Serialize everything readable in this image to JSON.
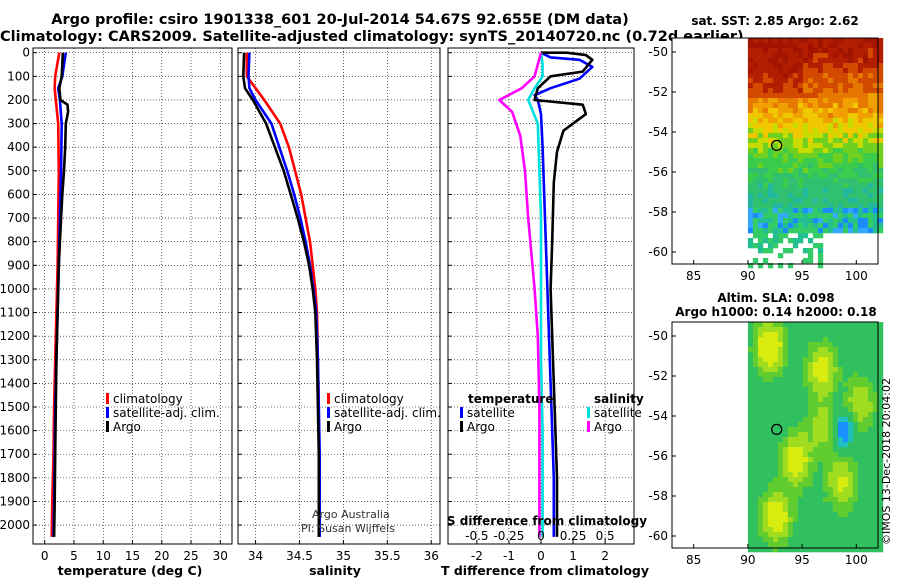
{
  "header": {
    "line1": "Argo profile: csiro 1901338_601 20-Jul-2014 54.67S 92.655E (DM data)",
    "line2": "Climatology: CARS2009. Satellite-adjusted climatology: synTS_20140720.nc (0.72d earlier)"
  },
  "colors": {
    "climatology": "#ff0000",
    "satellite": "#0000ff",
    "argo": "#000000",
    "sat_s": "#00e0e0",
    "argo_s": "#ff00ff"
  },
  "chart_data": [
    {
      "id": "temperature",
      "type": "line",
      "xlabel": "temperature (deg C)",
      "xlim": [
        -2,
        32
      ],
      "xticks": [
        0,
        5,
        10,
        15,
        20,
        25,
        30
      ],
      "ylim": [
        2080,
        -20
      ],
      "yticks": [
        0,
        100,
        200,
        300,
        400,
        500,
        600,
        700,
        800,
        900,
        1000,
        1100,
        1200,
        1300,
        1400,
        1500,
        1600,
        1700,
        1800,
        1900,
        2000
      ],
      "legend": {
        "position": "lower-right",
        "labels": [
          "climatology",
          "satellite-adj. clim.",
          "Argo"
        ]
      },
      "series": [
        {
          "name": "climatology",
          "color": "#ff0000",
          "points": [
            [
              2.5,
              0
            ],
            [
              1.8,
              100
            ],
            [
              1.7,
              150
            ],
            [
              1.9,
              200
            ],
            [
              2.3,
              300
            ],
            [
              2.4,
              500
            ],
            [
              2.3,
              700
            ],
            [
              2.2,
              900
            ],
            [
              2.0,
              1100
            ],
            [
              1.8,
              1300
            ],
            [
              1.6,
              1500
            ],
            [
              1.5,
              1700
            ],
            [
              1.3,
              1900
            ],
            [
              1.2,
              2050
            ]
          ]
        },
        {
          "name": "satellite-adj. clim.",
          "color": "#0000ff",
          "points": [
            [
              3.6,
              0
            ],
            [
              3.3,
              50
            ],
            [
              3.0,
              100
            ],
            [
              2.3,
              150
            ],
            [
              2.6,
              200
            ],
            [
              2.9,
              300
            ],
            [
              2.8,
              500
            ],
            [
              2.6,
              700
            ],
            [
              2.4,
              900
            ],
            [
              2.2,
              1100
            ],
            [
              2.0,
              1300
            ],
            [
              1.8,
              1500
            ],
            [
              1.7,
              1700
            ],
            [
              1.6,
              1900
            ],
            [
              1.5,
              2050
            ]
          ]
        },
        {
          "name": "Argo",
          "color": "#000000",
          "points": [
            [
              3.1,
              0
            ],
            [
              3.0,
              50
            ],
            [
              2.9,
              100
            ],
            [
              2.5,
              150
            ],
            [
              2.7,
              200
            ],
            [
              3.9,
              220
            ],
            [
              4.0,
              250
            ],
            [
              3.6,
              300
            ],
            [
              3.5,
              400
            ],
            [
              3.3,
              500
            ],
            [
              3.0,
              600
            ],
            [
              2.8,
              700
            ],
            [
              2.6,
              800
            ],
            [
              2.4,
              900
            ],
            [
              2.3,
              1000
            ],
            [
              2.2,
              1100
            ],
            [
              2.0,
              1300
            ],
            [
              1.9,
              1500
            ],
            [
              1.8,
              1700
            ],
            [
              1.7,
              1900
            ],
            [
              1.6,
              2050
            ]
          ]
        }
      ]
    },
    {
      "id": "salinity",
      "type": "line",
      "xlabel": "salinity",
      "xlim": [
        33.8,
        36.1
      ],
      "xticks": [
        34,
        34.5,
        35,
        35.5,
        36
      ],
      "xticklabels": [
        "34",
        "34.5",
        "35",
        "35.5",
        "36"
      ],
      "ylim": [
        2080,
        -20
      ],
      "legend": {
        "position": "lower-right",
        "labels": [
          "climatology",
          "satellite-adj. clim.",
          "Argo"
        ]
      },
      "annotation": [
        "Argo Australia",
        "PI: Susan Wijffels"
      ],
      "series": [
        {
          "name": "climatology",
          "color": "#ff0000",
          "points": [
            [
              33.9,
              0
            ],
            [
              33.9,
              100
            ],
            [
              34.0,
              150
            ],
            [
              34.1,
              200
            ],
            [
              34.28,
              300
            ],
            [
              34.38,
              400
            ],
            [
              34.45,
              500
            ],
            [
              34.52,
              600
            ],
            [
              34.57,
              700
            ],
            [
              34.62,
              800
            ],
            [
              34.65,
              900
            ],
            [
              34.68,
              1000
            ],
            [
              34.7,
              1100
            ],
            [
              34.71,
              1300
            ],
            [
              34.72,
              1500
            ],
            [
              34.72,
              1700
            ],
            [
              34.72,
              1900
            ],
            [
              34.72,
              2050
            ]
          ]
        },
        {
          "name": "satellite-adj. clim.",
          "color": "#0000ff",
          "points": [
            [
              33.93,
              0
            ],
            [
              33.92,
              100
            ],
            [
              33.93,
              150
            ],
            [
              34.0,
              200
            ],
            [
              34.18,
              300
            ],
            [
              34.27,
              400
            ],
            [
              34.36,
              500
            ],
            [
              34.44,
              600
            ],
            [
              34.51,
              700
            ],
            [
              34.57,
              800
            ],
            [
              34.62,
              900
            ],
            [
              34.66,
              1000
            ],
            [
              34.69,
              1100
            ],
            [
              34.71,
              1300
            ],
            [
              34.72,
              1500
            ],
            [
              34.73,
              1700
            ],
            [
              34.73,
              1900
            ],
            [
              34.73,
              2050
            ]
          ]
        },
        {
          "name": "Argo",
          "color": "#000000",
          "points": [
            [
              33.87,
              0
            ],
            [
              33.86,
              100
            ],
            [
              33.88,
              150
            ],
            [
              33.97,
              200
            ],
            [
              34.12,
              300
            ],
            [
              34.22,
              400
            ],
            [
              34.32,
              500
            ],
            [
              34.4,
              600
            ],
            [
              34.48,
              700
            ],
            [
              34.55,
              800
            ],
            [
              34.61,
              900
            ],
            [
              34.65,
              1000
            ],
            [
              34.68,
              1100
            ],
            [
              34.7,
              1300
            ],
            [
              34.71,
              1500
            ],
            [
              34.72,
              1700
            ],
            [
              34.72,
              1900
            ],
            [
              34.72,
              2050
            ]
          ]
        }
      ]
    },
    {
      "id": "difference",
      "type": "line",
      "xlabel": "T difference from climatology",
      "xlim": [
        -2.9,
        2.9
      ],
      "xticks": [
        -2,
        -1,
        0,
        1,
        2
      ],
      "s_axis": {
        "label": "S difference from climatology",
        "ticks": [
          "-0.5",
          "-0.25",
          "0",
          "0.25",
          "0.5"
        ],
        "positions": [
          -2,
          -1,
          0,
          1,
          2
        ]
      },
      "ylim": [
        2080,
        -20
      ],
      "legend": {
        "position": "lower-center",
        "left_title": "temperature",
        "right_title": "salinity",
        "labels": [
          "satellite",
          "Argo",
          "satellite",
          "Argo"
        ]
      },
      "series": [
        {
          "name": "temperature satellite",
          "color": "#0000ff",
          "points": [
            [
              0.0,
              0
            ],
            [
              0.3,
              20
            ],
            [
              1.2,
              30
            ],
            [
              1.6,
              60
            ],
            [
              1.2,
              110
            ],
            [
              0.3,
              150
            ],
            [
              -0.2,
              180
            ],
            [
              -0.1,
              200
            ],
            [
              0.0,
              260
            ],
            [
              0.05,
              400
            ],
            [
              0.1,
              600
            ],
            [
              0.15,
              800
            ],
            [
              0.2,
              1000
            ],
            [
              0.25,
              1200
            ],
            [
              0.3,
              1400
            ],
            [
              0.35,
              1600
            ],
            [
              0.4,
              1800
            ],
            [
              0.4,
              2050
            ]
          ]
        },
        {
          "name": "temperature Argo",
          "color": "#000000",
          "points": [
            [
              0.0,
              0
            ],
            [
              0.8,
              0
            ],
            [
              1.4,
              10
            ],
            [
              1.6,
              30
            ],
            [
              1.3,
              80
            ],
            [
              0.3,
              100
            ],
            [
              -0.1,
              150
            ],
            [
              -0.2,
              200
            ],
            [
              1.3,
              220
            ],
            [
              1.4,
              260
            ],
            [
              0.7,
              330
            ],
            [
              0.5,
              420
            ],
            [
              0.4,
              550
            ],
            [
              0.35,
              800
            ],
            [
              0.3,
              1000
            ],
            [
              0.35,
              1200
            ],
            [
              0.4,
              1400
            ],
            [
              0.45,
              1600
            ],
            [
              0.5,
              1800
            ],
            [
              0.5,
              2050
            ]
          ]
        },
        {
          "name": "salinity satellite",
          "color": "#00e0e0",
          "points": [
            [
              0.0,
              0
            ],
            [
              0.05,
              50
            ],
            [
              0.05,
              100
            ],
            [
              -0.2,
              150
            ],
            [
              -0.4,
              200
            ],
            [
              -0.1,
              300
            ],
            [
              -0.05,
              500
            ],
            [
              0.0,
              700
            ],
            [
              0.0,
              1000
            ],
            [
              0.0,
              1300
            ],
            [
              0.05,
              1600
            ],
            [
              0.05,
              1900
            ],
            [
              0.05,
              2050
            ]
          ]
        },
        {
          "name": "salinity Argo",
          "color": "#ff00ff",
          "points": [
            [
              0.0,
              0
            ],
            [
              -0.1,
              50
            ],
            [
              -0.2,
              100
            ],
            [
              -0.6,
              150
            ],
            [
              -1.3,
              200
            ],
            [
              -0.9,
              250
            ],
            [
              -0.65,
              350
            ],
            [
              -0.5,
              500
            ],
            [
              -0.4,
              700
            ],
            [
              -0.2,
              1000
            ],
            [
              -0.1,
              1200
            ],
            [
              -0.05,
              1500
            ],
            [
              -0.05,
              1800
            ],
            [
              -0.05,
              2050
            ]
          ]
        }
      ]
    },
    {
      "id": "sst_map",
      "type": "heatmap",
      "title": "sat. SST: 2.85 Argo: 2.62",
      "xticks": [
        85,
        90,
        95,
        100
      ],
      "yticks": [
        -50,
        -52,
        -54,
        -56,
        -58,
        -60
      ],
      "xlim": [
        83,
        102
      ],
      "ylim": [
        -60.6,
        -49.3
      ],
      "data_lon_range": [
        90,
        102
      ],
      "marker": {
        "lon": 92.655,
        "lat": -54.67
      }
    },
    {
      "id": "sla_map",
      "type": "heatmap",
      "title_lines": [
        "Altim. SLA: 0.098",
        "Argo h1000: 0.14 h2000: 0.18"
      ],
      "xticks": [
        85,
        90,
        95,
        100
      ],
      "yticks": [
        -50,
        -52,
        -54,
        -56,
        -58,
        -60
      ],
      "xlim": [
        83,
        102
      ],
      "ylim": [
        -60.6,
        -49.3
      ],
      "data_lon_range": [
        90,
        102
      ],
      "marker": {
        "lon": 92.655,
        "lat": -54.67
      }
    }
  ],
  "footer": {
    "stamp": "©IMOS 13-Dec-2018 20:04:02"
  }
}
